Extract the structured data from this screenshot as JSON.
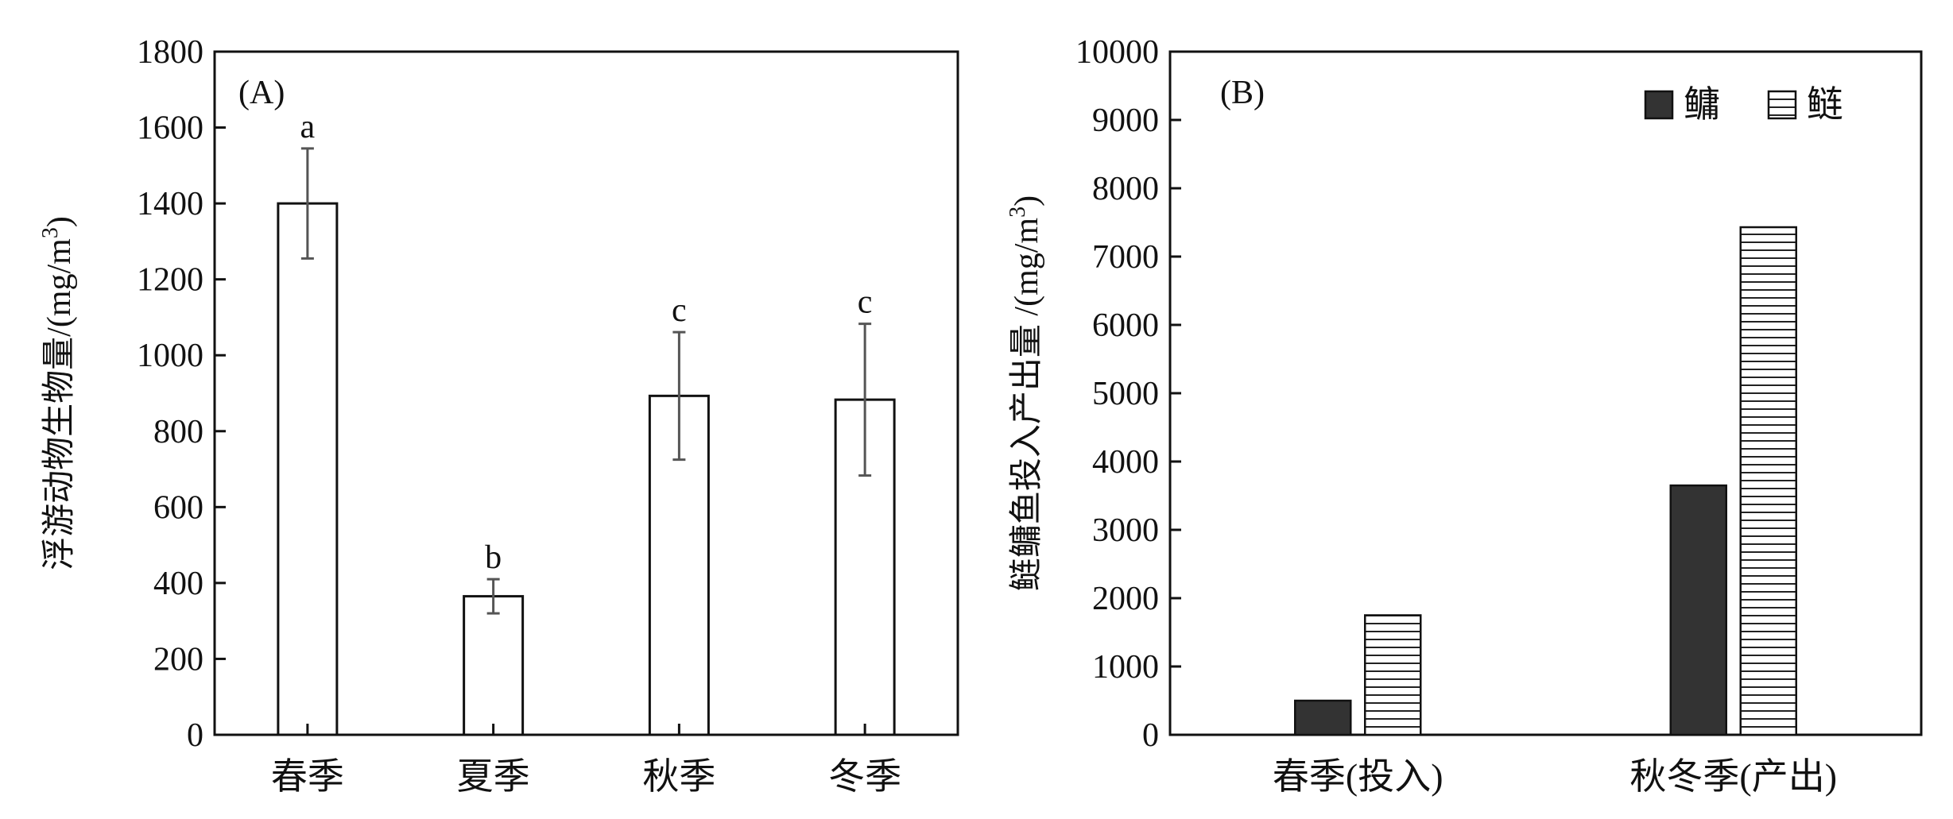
{
  "chart_data": [
    {
      "type": "bar",
      "panel_label": "(A)",
      "ylabel": "浮游动物生物量/(mg/m",
      "ylabel_sup": "3",
      "ylabel_close": ")",
      "ylim": [
        0,
        1800
      ],
      "yticks": [
        0,
        200,
        400,
        600,
        800,
        1000,
        1200,
        1400,
        1600,
        1800
      ],
      "categories": [
        "春季",
        "夏季",
        "秋季",
        "冬季"
      ],
      "values": [
        1400,
        365,
        893,
        883
      ],
      "errors": [
        145,
        45,
        168,
        200
      ],
      "significance": [
        "a",
        "b",
        "c",
        "c"
      ]
    },
    {
      "type": "bar",
      "panel_label": "(B)",
      "ylabel": "鲢鳙鱼投入产出量 /(mg/m",
      "ylabel_sup": "3",
      "ylabel_close": ")",
      "ylim": [
        0,
        10000
      ],
      "yticks": [
        0,
        1000,
        2000,
        3000,
        4000,
        5000,
        6000,
        7000,
        8000,
        9000,
        10000
      ],
      "categories": [
        "春季(投入)",
        "秋冬季(产出)"
      ],
      "series": [
        {
          "name": "鳙",
          "values": [
            500,
            3650
          ],
          "color": "#333333",
          "pattern": "solid"
        },
        {
          "name": "鲢",
          "values": [
            1750,
            7430
          ],
          "color": "#ffffff",
          "pattern": "horizontal-lines"
        }
      ],
      "legend_position": "top-right"
    }
  ]
}
